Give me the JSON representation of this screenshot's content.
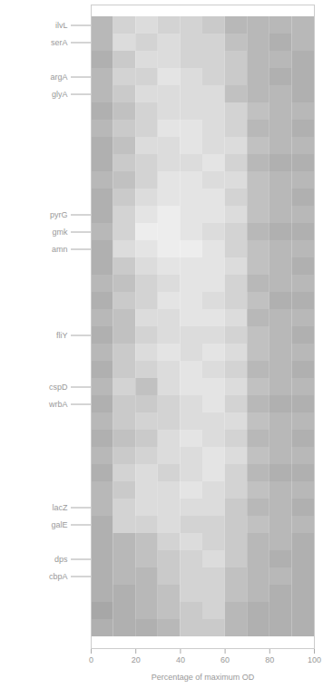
{
  "chart_data": {
    "type": "heatmap",
    "xlabel": "Percentage of maximum OD",
    "categories": [
      "ilvL",
      "serA",
      null,
      "argA",
      "glyA",
      null,
      null,
      null,
      null,
      null,
      null,
      "pyrG",
      "gmk",
      "amn",
      null,
      null,
      null,
      null,
      "fliY",
      null,
      null,
      "cspD",
      "wrbA",
      null,
      null,
      null,
      null,
      null,
      "lacZ",
      "galE",
      null,
      "dps",
      "cbpA",
      null,
      null,
      null
    ],
    "x_bins": [
      0,
      10,
      20,
      30,
      40,
      50,
      60,
      70,
      80,
      90,
      100
    ],
    "xlim": [
      0,
      100
    ],
    "xticks": [
      0,
      20,
      40,
      60,
      80,
      100
    ],
    "zlim": [
      0,
      1
    ],
    "color": "#9e9e9e",
    "cells": [
      [
        0.3,
        0.6,
        0.7,
        0.6,
        0.6,
        0.5,
        0.3,
        0.3,
        0.3,
        0.3
      ],
      [
        0.3,
        0.7,
        0.6,
        0.7,
        0.6,
        0.6,
        0.4,
        0.3,
        0.2,
        0.3
      ],
      [
        0.2,
        0.5,
        0.7,
        0.7,
        0.6,
        0.6,
        0.5,
        0.3,
        0.3,
        0.2
      ],
      [
        0.3,
        0.6,
        0.6,
        0.8,
        0.7,
        0.6,
        0.5,
        0.3,
        0.2,
        0.2
      ],
      [
        0.3,
        0.5,
        0.7,
        0.7,
        0.7,
        0.7,
        0.4,
        0.3,
        0.3,
        0.2
      ],
      [
        0.2,
        0.4,
        0.6,
        0.7,
        0.7,
        0.7,
        0.6,
        0.4,
        0.3,
        0.3
      ],
      [
        0.3,
        0.5,
        0.6,
        0.8,
        0.8,
        0.7,
        0.6,
        0.3,
        0.3,
        0.2
      ],
      [
        0.2,
        0.4,
        0.7,
        0.7,
        0.8,
        0.7,
        0.7,
        0.4,
        0.3,
        0.3
      ],
      [
        0.2,
        0.5,
        0.6,
        0.7,
        0.7,
        0.8,
        0.6,
        0.3,
        0.2,
        0.2
      ],
      [
        0.3,
        0.4,
        0.6,
        0.8,
        0.8,
        0.7,
        0.7,
        0.4,
        0.3,
        0.3
      ],
      [
        0.2,
        0.5,
        0.7,
        0.8,
        0.8,
        0.8,
        0.6,
        0.4,
        0.3,
        0.2
      ],
      [
        0.2,
        0.6,
        0.8,
        0.9,
        0.8,
        0.8,
        0.7,
        0.4,
        0.3,
        0.3
      ],
      [
        0.3,
        0.6,
        0.9,
        0.9,
        0.8,
        0.7,
        0.6,
        0.3,
        0.2,
        0.2
      ],
      [
        0.2,
        0.7,
        0.8,
        0.9,
        0.9,
        0.8,
        0.6,
        0.4,
        0.3,
        0.3
      ],
      [
        0.2,
        0.5,
        0.7,
        0.8,
        0.8,
        0.8,
        0.7,
        0.4,
        0.3,
        0.2
      ],
      [
        0.3,
        0.4,
        0.6,
        0.7,
        0.8,
        0.8,
        0.6,
        0.3,
        0.3,
        0.3
      ],
      [
        0.2,
        0.5,
        0.6,
        0.8,
        0.8,
        0.7,
        0.6,
        0.4,
        0.2,
        0.2
      ],
      [
        0.3,
        0.4,
        0.7,
        0.7,
        0.8,
        0.8,
        0.7,
        0.3,
        0.3,
        0.3
      ],
      [
        0.2,
        0.4,
        0.6,
        0.7,
        0.7,
        0.7,
        0.6,
        0.4,
        0.3,
        0.2
      ],
      [
        0.3,
        0.5,
        0.7,
        0.8,
        0.7,
        0.8,
        0.7,
        0.4,
        0.3,
        0.3
      ],
      [
        0.2,
        0.5,
        0.6,
        0.7,
        0.8,
        0.7,
        0.6,
        0.3,
        0.3,
        0.2
      ],
      [
        0.3,
        0.6,
        0.4,
        0.7,
        0.8,
        0.8,
        0.7,
        0.4,
        0.3,
        0.3
      ],
      [
        0.2,
        0.5,
        0.5,
        0.6,
        0.7,
        0.8,
        0.6,
        0.3,
        0.2,
        0.2
      ],
      [
        0.3,
        0.5,
        0.6,
        0.6,
        0.7,
        0.7,
        0.7,
        0.4,
        0.3,
        0.3
      ],
      [
        0.2,
        0.4,
        0.5,
        0.7,
        0.8,
        0.7,
        0.6,
        0.3,
        0.3,
        0.2
      ],
      [
        0.3,
        0.5,
        0.6,
        0.7,
        0.7,
        0.8,
        0.7,
        0.4,
        0.3,
        0.3
      ],
      [
        0.2,
        0.6,
        0.7,
        0.6,
        0.7,
        0.8,
        0.6,
        0.3,
        0.2,
        0.2
      ],
      [
        0.3,
        0.5,
        0.7,
        0.7,
        0.8,
        0.7,
        0.6,
        0.4,
        0.3,
        0.3
      ],
      [
        0.3,
        0.6,
        0.7,
        0.7,
        0.7,
        0.7,
        0.5,
        0.3,
        0.3,
        0.2
      ],
      [
        0.2,
        0.6,
        0.6,
        0.7,
        0.6,
        0.6,
        0.5,
        0.4,
        0.3,
        0.3
      ],
      [
        0.2,
        0.3,
        0.4,
        0.6,
        0.7,
        0.6,
        0.5,
        0.3,
        0.3,
        0.2
      ],
      [
        0.2,
        0.3,
        0.4,
        0.5,
        0.6,
        0.7,
        0.5,
        0.3,
        0.2,
        0.2
      ],
      [
        0.2,
        0.3,
        0.3,
        0.5,
        0.6,
        0.6,
        0.4,
        0.3,
        0.3,
        0.2
      ],
      [
        0.2,
        0.2,
        0.3,
        0.4,
        0.6,
        0.6,
        0.4,
        0.3,
        0.2,
        0.2
      ],
      [
        0.1,
        0.2,
        0.3,
        0.4,
        0.5,
        0.6,
        0.3,
        0.2,
        0.2,
        0.2
      ],
      [
        0.2,
        0.2,
        0.2,
        0.3,
        0.5,
        0.5,
        0.3,
        0.2,
        0.2,
        0.2
      ]
    ]
  }
}
